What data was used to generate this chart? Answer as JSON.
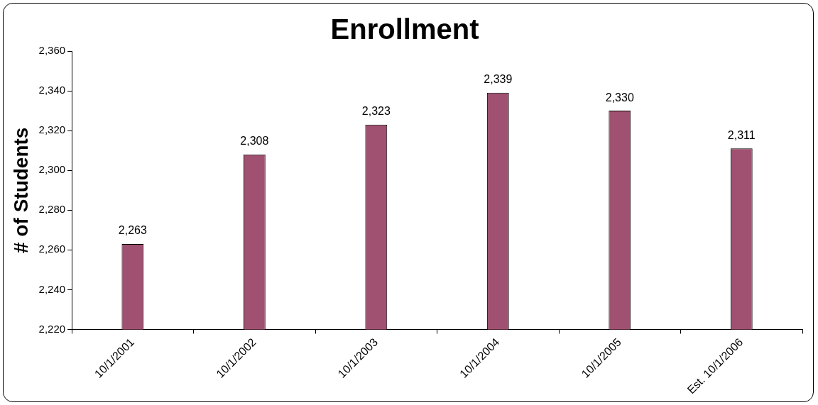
{
  "chart_data": {
    "type": "bar",
    "title": "Enrollment",
    "ylabel": "# of Students",
    "categories": [
      "10/1/2001",
      "10/1/2002",
      "10/1/2003",
      "10/1/2004",
      "10/1/2005",
      "Est. 10/1/2006"
    ],
    "values": [
      2263,
      2308,
      2323,
      2339,
      2330,
      2311
    ],
    "value_labels": [
      "2,263",
      "2,308",
      "2,323",
      "2,339",
      "2,330",
      "2,311"
    ],
    "color": "#a05070",
    "ylim": [
      2220,
      2360
    ],
    "yticks": [
      {
        "value": 2220,
        "label": "2,220"
      },
      {
        "value": 2240,
        "label": "2,240"
      },
      {
        "value": 2260,
        "label": "2,260"
      },
      {
        "value": 2280,
        "label": "2,280"
      },
      {
        "value": 2300,
        "label": "2,300"
      },
      {
        "value": 2320,
        "label": "2,320"
      },
      {
        "value": 2340,
        "label": "2,340"
      },
      {
        "value": 2360,
        "label": "2,360"
      }
    ],
    "grid": false,
    "legend": false
  }
}
